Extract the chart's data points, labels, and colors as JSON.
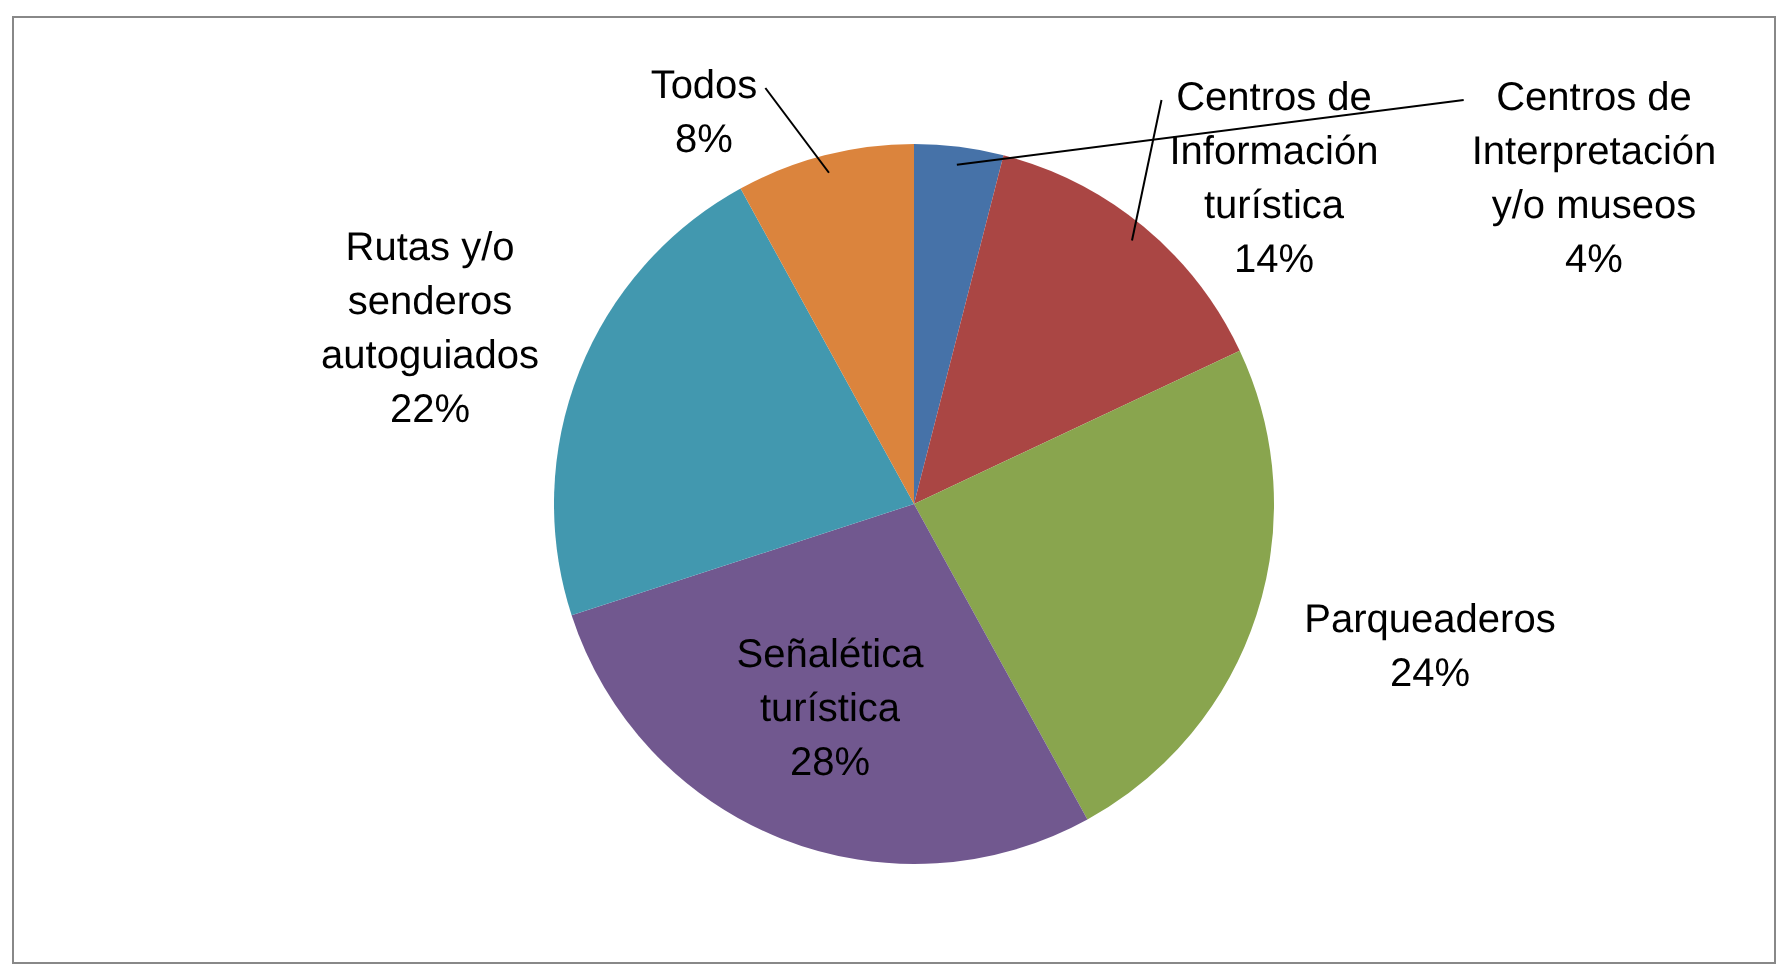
{
  "chart_data": {
    "type": "pie",
    "categories": [
      "Centros de Interpretación y/o museos",
      "Centros de Información turística",
      "Parqueaderos",
      "Señalética turística",
      "Rutas y/o senderos autoguiados",
      "Todos"
    ],
    "values": [
      4,
      14,
      24,
      28,
      22,
      8
    ],
    "value_labels": [
      "4%",
      "14%",
      "24%",
      "28%",
      "22%",
      "8%"
    ],
    "colors": [
      "#4672a8",
      "#aa4644",
      "#89a54e",
      "#71588f",
      "#4298af",
      "#db843d"
    ]
  }
}
